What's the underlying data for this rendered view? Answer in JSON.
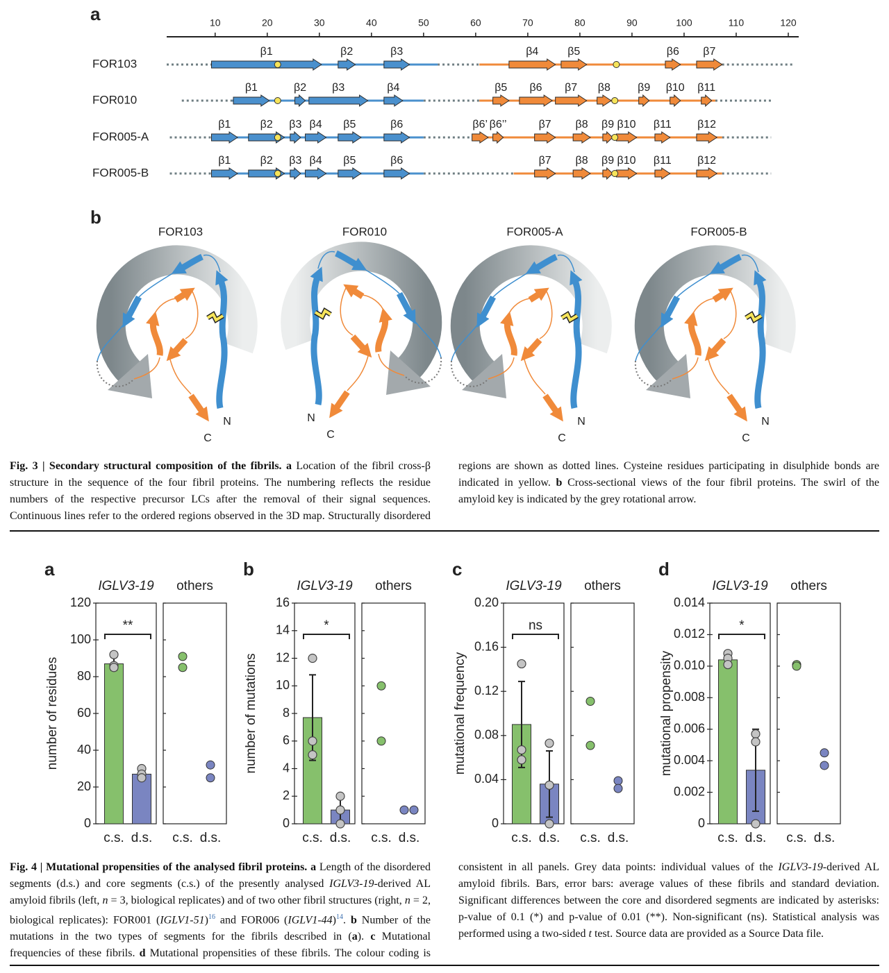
{
  "fig3": {
    "panel_a": {
      "label": "a",
      "xlim": [
        0.7,
        122
      ],
      "xticks": [
        10,
        20,
        30,
        40,
        50,
        60,
        70,
        80,
        90,
        100,
        110,
        120
      ],
      "rows": [
        {
          "name": "FOR103",
          "extent": [
            0.7,
            121
          ],
          "cysteines": [
            22,
            87
          ],
          "domains": [
            {
              "color": "#4a90cd",
              "start": 9.3,
              "end": 52.7,
              "strands": [
                {
                  "label": "β1",
                  "start": 9.3,
                  "end": 30.4
                },
                {
                  "label": "β2",
                  "start": 33.6,
                  "end": 36.9
                },
                {
                  "label": "β3",
                  "start": 42.4,
                  "end": 47.3
                }
              ]
            },
            {
              "color": "#f08a3a",
              "start": 60.7,
              "end": 107.3,
              "strands": [
                {
                  "label": "β4",
                  "start": 66.4,
                  "end": 75.3
                },
                {
                  "label": "β5",
                  "start": 76.4,
                  "end": 81.3
                },
                {
                  "label": "β6",
                  "start": 96.4,
                  "end": 99.3
                },
                {
                  "label": "β7",
                  "start": 102.4,
                  "end": 107.3
                }
              ]
            }
          ]
        },
        {
          "name": "FOR010",
          "extent": [
            3.6,
            116.7
          ],
          "cysteines": [
            22,
            86.7
          ],
          "domains": [
            {
              "color": "#4a90cd",
              "start": 13.3,
              "end": 50,
              "strands": [
                {
                  "label": "β1",
                  "start": 13.5,
                  "end": 20.4
                },
                {
                  "label": "β2",
                  "start": 25.3,
                  "end": 27.3
                },
                {
                  "label": "β3",
                  "start": 28,
                  "end": 39.3
                },
                {
                  "label": "β4",
                  "start": 42.4,
                  "end": 46
                }
              ]
            },
            {
              "color": "#f08a3a",
              "start": 60.7,
              "end": 106,
              "strands": [
                {
                  "label": "β5",
                  "start": 63.3,
                  "end": 66.4
                },
                {
                  "label": "β6",
                  "start": 68.4,
                  "end": 74.7
                },
                {
                  "label": "β7",
                  "start": 75.3,
                  "end": 81.3
                },
                {
                  "label": "β8",
                  "start": 83.3,
                  "end": 86
                },
                {
                  "label": "β9",
                  "start": 91.3,
                  "end": 93.3
                },
                {
                  "label": "β10",
                  "start": 97.3,
                  "end": 99.3
                },
                {
                  "label": "β11",
                  "start": 103.3,
                  "end": 105.3
                }
              ]
            }
          ]
        },
        {
          "name": "FOR005-A",
          "extent": [
            1.3,
            116.7
          ],
          "cysteines": [
            22,
            86.7
          ],
          "domains": [
            {
              "color": "#4a90cd",
              "start": 9.3,
              "end": 50,
              "strands": [
                {
                  "label": "β1",
                  "start": 9.3,
                  "end": 14.3
                },
                {
                  "label": "β2",
                  "start": 16.4,
                  "end": 23.3
                },
                {
                  "label": "β3",
                  "start": 24.4,
                  "end": 26.4
                },
                {
                  "label": "β4",
                  "start": 27.3,
                  "end": 31.3
                },
                {
                  "label": "β5",
                  "start": 33.6,
                  "end": 38
                },
                {
                  "label": "β6",
                  "start": 42.4,
                  "end": 47.3
                }
              ]
            },
            {
              "color": "#f08a3a",
              "start": 59.3,
              "end": 107.3,
              "strands": [
                {
                  "label": "β6’",
                  "start": 59.3,
                  "end": 62.4
                },
                {
                  "label": "β6’’",
                  "start": 63.3,
                  "end": 65.3
                },
                {
                  "label": "β7",
                  "start": 71.3,
                  "end": 75.3
                },
                {
                  "label": "β8",
                  "start": 78.7,
                  "end": 82
                },
                {
                  "label": "β9",
                  "start": 84.4,
                  "end": 86.3
                },
                {
                  "label": "β10",
                  "start": 87,
                  "end": 90.9
                },
                {
                  "label": "β11",
                  "start": 94.4,
                  "end": 97.3
                },
                {
                  "label": "β12",
                  "start": 102.4,
                  "end": 106.3
                }
              ]
            }
          ]
        },
        {
          "name": "FOR005-B",
          "extent": [
            1.3,
            116.7
          ],
          "cysteines": [
            22,
            86.7
          ],
          "domains": [
            {
              "color": "#4a90cd",
              "start": 9.3,
              "end": 50,
              "strands": [
                {
                  "label": "β1",
                  "start": 9.3,
                  "end": 14.3
                },
                {
                  "label": "β2",
                  "start": 16.4,
                  "end": 23.3
                },
                {
                  "label": "β3",
                  "start": 24.4,
                  "end": 26.4
                },
                {
                  "label": "β4",
                  "start": 27.3,
                  "end": 31.3
                },
                {
                  "label": "β5",
                  "start": 33.6,
                  "end": 38
                },
                {
                  "label": "β6",
                  "start": 42.4,
                  "end": 47.3
                }
              ]
            },
            {
              "color": "#f08a3a",
              "start": 67.3,
              "end": 107.3,
              "strands": [
                {
                  "label": "β7",
                  "start": 71.3,
                  "end": 75.3
                },
                {
                  "label": "β8",
                  "start": 78.7,
                  "end": 82
                },
                {
                  "label": "β9",
                  "start": 84.4,
                  "end": 86.3
                },
                {
                  "label": "β10",
                  "start": 87,
                  "end": 90.9
                },
                {
                  "label": "β11",
                  "start": 94.4,
                  "end": 97.3
                },
                {
                  "label": "β12",
                  "start": 102.4,
                  "end": 106.3
                }
              ]
            }
          ]
        }
      ]
    },
    "panel_b": {
      "label": "b",
      "structures": [
        {
          "title": "FOR103",
          "n_label": "N",
          "c_label": "C"
        },
        {
          "title": "FOR010",
          "n_label": "N",
          "c_label": "C"
        },
        {
          "title": "FOR005-A",
          "n_label": "N",
          "c_label": "C"
        },
        {
          "title": "FOR005-B",
          "n_label": "N",
          "c_label": "C"
        }
      ]
    },
    "caption": [
      {
        "text": "Fig. 3 | Secondary structural composition of the fibrils. ",
        "style": "bold"
      },
      {
        "text": "a",
        "style": "bold"
      },
      {
        "text": " Location of the fibril cross-β structure in the sequence of the four fibril proteins. The numbering reflects the residue numbers of the respective precursor LCs after the removal of their signal sequences. Continuous lines refer to the ordered regions observed in the 3D map. Structurally disordered regions are shown as dotted lines. Cysteine residues participating in disulphide bonds are indicated in yellow. "
      },
      {
        "text": "b",
        "style": "bold"
      },
      {
        "text": " Cross-sectional views of the four fibril proteins. The swirl of the amyloid key is indicated by the grey rotational arrow."
      }
    ]
  },
  "chart_data": [
    {
      "type": "bar",
      "label": "a",
      "ylabel": "number of residues",
      "group_titles": [
        "IGLV3-19",
        "others"
      ],
      "categories": [
        "c.s.",
        "d.s."
      ],
      "ylim": [
        0,
        120
      ],
      "yticks": [
        0,
        20,
        40,
        60,
        80,
        100,
        120
      ],
      "values": [
        87,
        27
      ],
      "errors": [
        3.5,
        2.5
      ],
      "points": [
        [
          92,
          86,
          85
        ],
        [
          30,
          27,
          25
        ]
      ],
      "others": [
        [
          91,
          85
        ],
        [
          32,
          25
        ]
      ],
      "significance": "**",
      "colors": [
        "#86c06c",
        "#7a85c1"
      ],
      "point_color": "#c4c4c4"
    },
    {
      "type": "bar",
      "label": "b",
      "ylabel": "number of mutations",
      "group_titles": [
        "IGLV3-19",
        "others"
      ],
      "categories": [
        "c.s.",
        "d.s."
      ],
      "ylim": [
        0,
        16
      ],
      "yticks": [
        0,
        2,
        4,
        6,
        8,
        10,
        12,
        14,
        16
      ],
      "values": [
        7.7,
        1.0
      ],
      "errors": [
        3.1,
        1.0
      ],
      "points": [
        [
          12,
          6,
          5
        ],
        [
          2,
          1,
          0
        ]
      ],
      "others": [
        [
          10,
          6
        ],
        [
          1,
          1
        ]
      ],
      "significance": "*",
      "colors": [
        "#86c06c",
        "#7a85c1"
      ],
      "point_color": "#c4c4c4"
    },
    {
      "type": "bar",
      "label": "c",
      "ylabel": "mutational frequency",
      "group_titles": [
        "IGLV3-19",
        "others"
      ],
      "categories": [
        "c.s.",
        "d.s."
      ],
      "ylim": [
        0,
        0.2
      ],
      "yticks": [
        0,
        0.04,
        0.08,
        0.12,
        0.16,
        {
          "value": 0.2,
          "label": "0.20"
        }
      ],
      "values": [
        0.09,
        0.036
      ],
      "errors": [
        0.039,
        0.03
      ],
      "points": [
        [
          0.145,
          0.067,
          0.058
        ],
        [
          0.073,
          0.035,
          0
        ]
      ],
      "others": [
        [
          0.111,
          0.071
        ],
        [
          0.039,
          0.032
        ]
      ],
      "significance": "ns",
      "colors": [
        "#86c06c",
        "#7a85c1"
      ],
      "point_color": "#c4c4c4"
    },
    {
      "type": "bar",
      "label": "d",
      "ylabel": "mutational propensity",
      "group_titles": [
        "IGLV3-19",
        "others"
      ],
      "categories": [
        "c.s.",
        "d.s."
      ],
      "ylim": [
        0,
        0.014
      ],
      "yticks": [
        0,
        0.002,
        0.004,
        0.006,
        0.008,
        {
          "value": 0.01,
          "label": "0.010"
        },
        0.012,
        0.014
      ],
      "values": [
        0.0104,
        0.0034
      ],
      "errors": [
        0.0003,
        0.0026
      ],
      "points": [
        [
          0.0108,
          0.0105,
          0.0101
        ],
        [
          0.0057,
          0.0052,
          0
        ]
      ],
      "others": [
        [
          0.0101,
          0.01
        ],
        [
          0.0045,
          0.0037
        ]
      ],
      "significance": "*",
      "colors": [
        "#86c06c",
        "#7a85c1"
      ],
      "point_color": "#c4c4c4"
    }
  ],
  "fig4": {
    "caption": [
      {
        "text": "Fig. 4 | Mutational propensities of the analysed fibril proteins. ",
        "style": "bold"
      },
      {
        "text": "a",
        "style": "bold"
      },
      {
        "text": " Length of the disordered segments (d.s.) and core segments (c.s.) of the presently analysed "
      },
      {
        "text": "IGLV3-19",
        "style": "italic"
      },
      {
        "text": "-derived AL amyloid fibrils (left, "
      },
      {
        "text": "n",
        "style": "italic"
      },
      {
        "text": " = 3, biological replicates) and of two other fibril structures (right, "
      },
      {
        "text": "n",
        "style": "italic"
      },
      {
        "text": " = 2, biological replicates): FOR001 ("
      },
      {
        "text": "IGLV1-51",
        "style": "italic"
      },
      {
        "text": ")"
      },
      {
        "text": "16",
        "style": "sup"
      },
      {
        "text": " and FOR006 ("
      },
      {
        "text": "IGLV1-44",
        "style": "italic"
      },
      {
        "text": ")"
      },
      {
        "text": "14",
        "style": "sup"
      },
      {
        "text": ". "
      },
      {
        "text": "b",
        "style": "bold"
      },
      {
        "text": " Number of the mutations in the two types of segments for the fibrils described in ("
      },
      {
        "text": "a",
        "style": "bold"
      },
      {
        "text": "). "
      },
      {
        "text": "c",
        "style": "bold"
      },
      {
        "text": " Mutational frequencies of these fibrils. "
      },
      {
        "text": "d",
        "style": "bold"
      },
      {
        "text": " Mutational propensities of these fibrils. The colour coding is consistent in all panels. Grey data points: individual values of the "
      },
      {
        "text": "IGLV3-19",
        "style": "italic"
      },
      {
        "text": "-derived AL amyloid fibrils. Bars, error bars: average values of these fibrils and standard deviation. Significant differences between the core and disordered segments are indicated by asterisks: p-value of 0.1 (*) and p-value of 0.01 (**). Non-significant (ns). Statistical analysis was performed using a two-sided "
      },
      {
        "text": "t",
        "style": "italic"
      },
      {
        "text": " test. Source data are provided as a Source Data file."
      }
    ]
  }
}
